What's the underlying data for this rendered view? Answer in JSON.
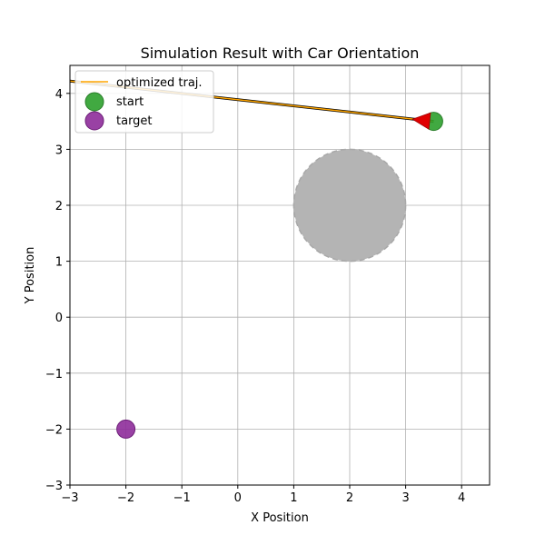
{
  "chart_data": {
    "type": "scatter",
    "title": "Simulation Result with Car Orientation",
    "xlabel": "X Position",
    "ylabel": "Y Position",
    "xlim": [
      -3,
      4.5
    ],
    "ylim": [
      -3,
      4.5
    ],
    "xticks": [
      -3,
      -2,
      -1,
      0,
      1,
      2,
      3,
      4
    ],
    "yticks": [
      -3,
      -2,
      -1,
      0,
      1,
      2,
      3,
      4
    ],
    "xtick_labels": [
      "−3",
      "−2",
      "−1",
      "0",
      "1",
      "2",
      "3",
      "4"
    ],
    "ytick_labels": [
      "−3",
      "−2",
      "−1",
      "0",
      "1",
      "2",
      "3",
      "4"
    ],
    "grid": true,
    "legend_position": "upper-left",
    "series": [
      {
        "name": "optimized traj.",
        "kind": "line",
        "color": "#ffa500",
        "x": [
          -3.0,
          3.5
        ],
        "y": [
          4.22,
          3.5
        ]
      },
      {
        "name": "start",
        "kind": "point",
        "color": "#2ca02c",
        "x": [
          3.5
        ],
        "y": [
          3.5
        ]
      },
      {
        "name": "target",
        "kind": "point",
        "color": "#8e2c9a",
        "x": [
          -2.0
        ],
        "y": [
          -2.0
        ]
      }
    ],
    "obstacle": {
      "center": [
        2.0,
        2.0
      ],
      "radius": 1.0,
      "color": "#b4b4b4"
    },
    "car_orientation": {
      "x": 3.3,
      "y": 3.52,
      "heading_deg": 174,
      "color": "#e00000"
    }
  }
}
